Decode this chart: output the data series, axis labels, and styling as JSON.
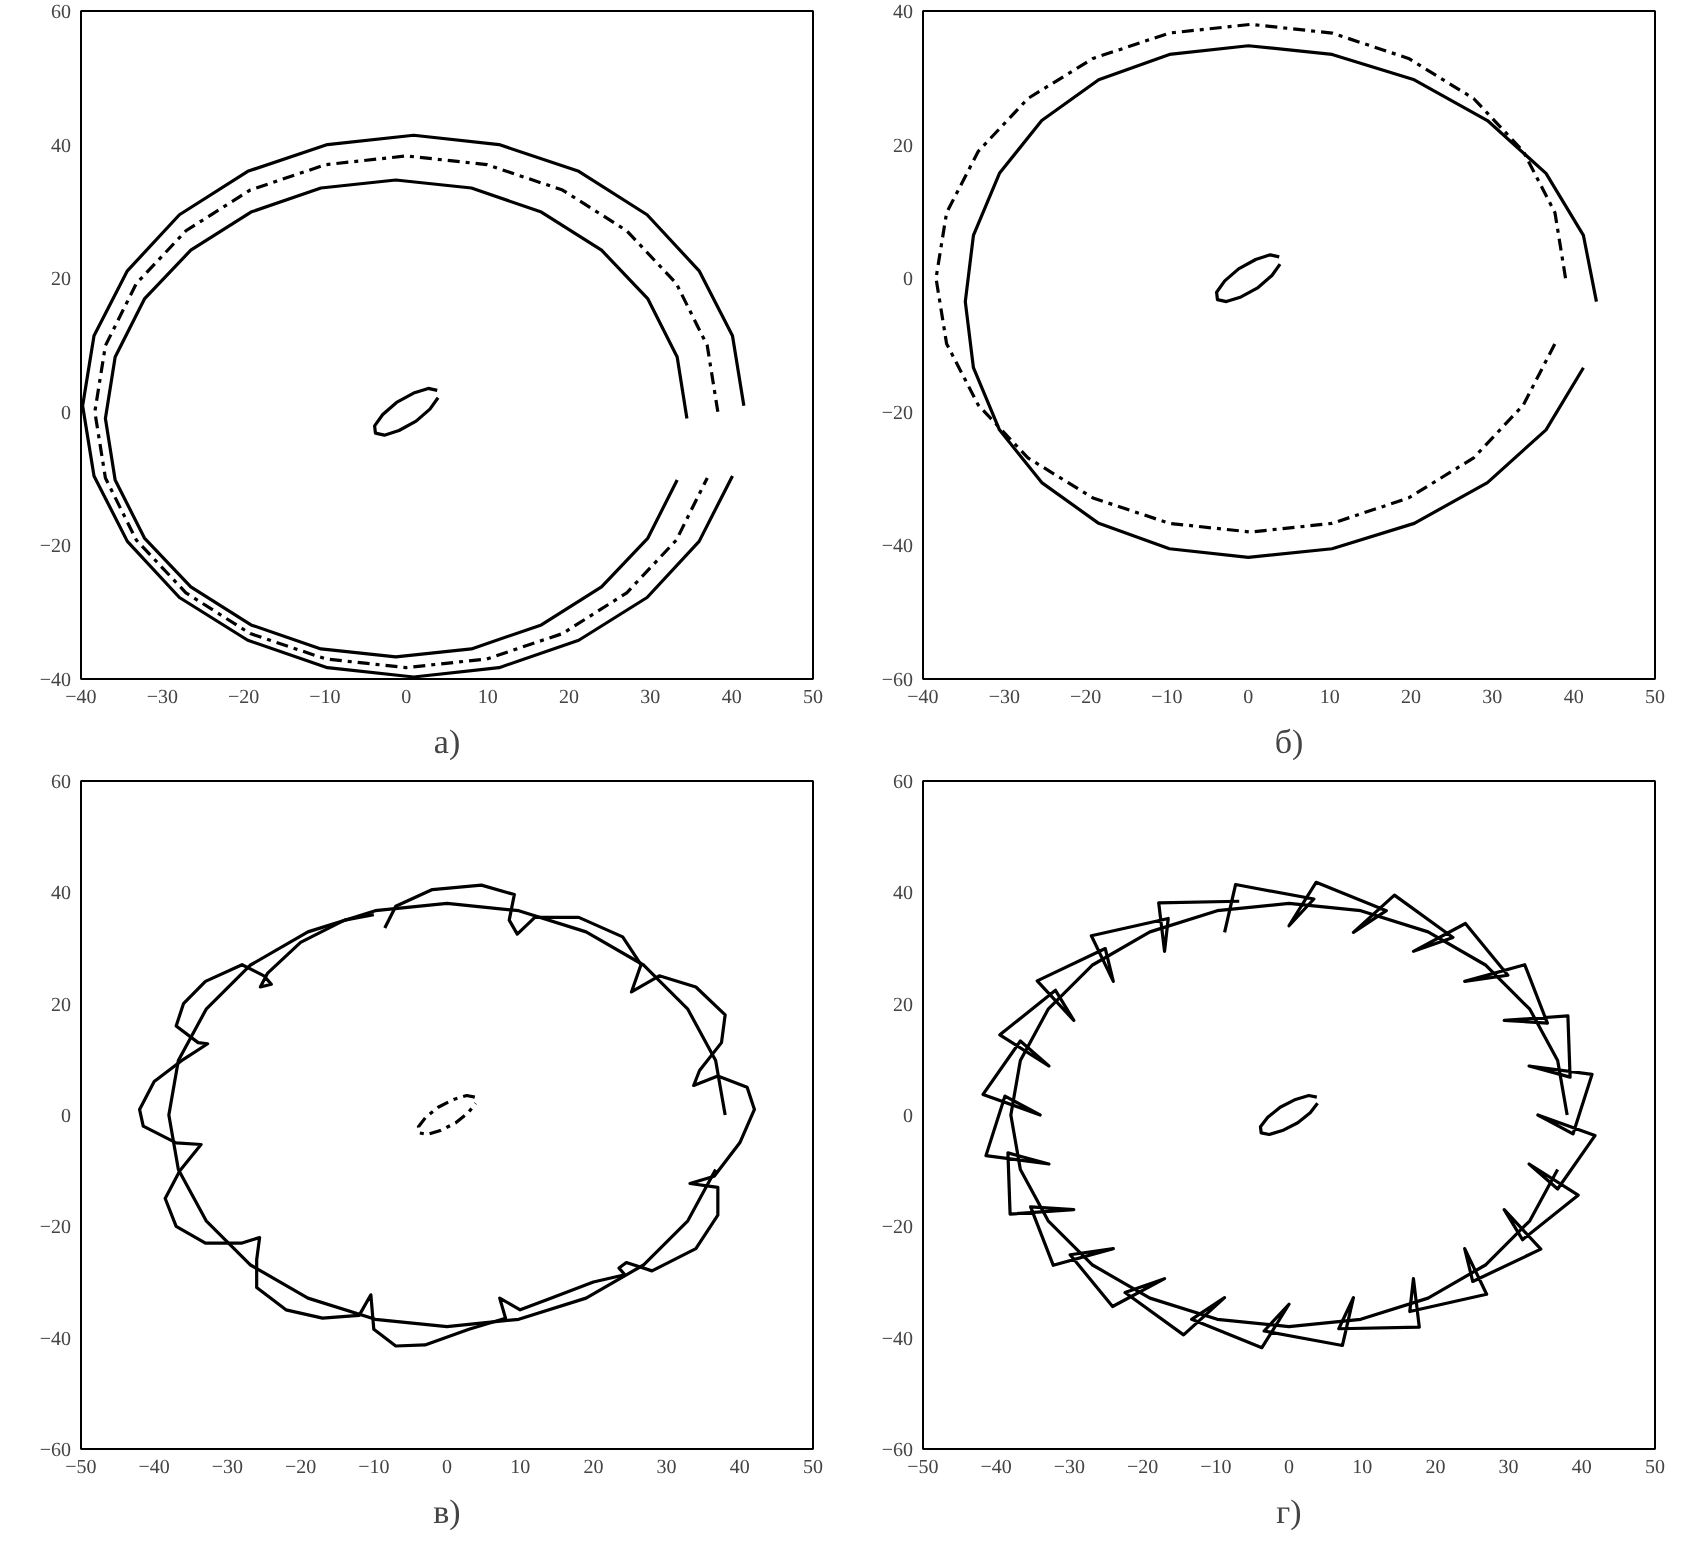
{
  "chart_data": [
    {
      "type": "line",
      "title": "а)",
      "xlim": [
        -40,
        50
      ],
      "ylim": [
        -40,
        60
      ],
      "xticks": [
        -40,
        -30,
        -20,
        -10,
        0,
        10,
        20,
        30,
        40,
        50
      ],
      "yticks": [
        -40,
        -20,
        0,
        20,
        40,
        60
      ],
      "series": [
        {
          "color": "#000000",
          "line_style": "solid",
          "x": [
            41.5,
            40.1,
            36.0,
            29.6,
            21.2,
            11.4,
            0.9,
            -9.7,
            -19.5,
            -27.9,
            -34.3,
            -38.4,
            -39.8,
            -38.4,
            -34.3,
            -27.9,
            -19.5,
            -9.7,
            0.9,
            11.4,
            21.2,
            29.6,
            36.0,
            40.1
          ],
          "values": [
            0.9,
            11.4,
            21.1,
            29.5,
            36.0,
            40.0,
            41.4,
            40.0,
            36.0,
            29.5,
            21.1,
            11.4,
            0.9,
            -9.6,
            -19.4,
            -27.8,
            -34.2,
            -38.3,
            -39.7,
            -38.3,
            -34.2,
            -27.8,
            -19.4,
            -9.6
          ]
        },
        {
          "color": "#000000",
          "line_style": "dashed",
          "x": [
            38.3,
            37.0,
            33.2,
            27.1,
            19.2,
            9.9,
            0,
            -9.9,
            -19.2,
            -27.1,
            -33.2,
            -37.0,
            -38.3,
            -37.0,
            -33.2,
            -27.1,
            -19.2,
            -9.9,
            0,
            9.9,
            19.2,
            27.1,
            33.2,
            37.0
          ],
          "values": [
            0,
            9.9,
            19.2,
            27.1,
            33.2,
            37.0,
            38.3,
            37.0,
            33.2,
            27.1,
            19.2,
            9.9,
            0,
            -9.9,
            -19.2,
            -27.1,
            -33.2,
            -37.0,
            -38.3,
            -37.0,
            -33.2,
            -27.1,
            -19.2,
            -9.9
          ]
        },
        {
          "color": "#000000",
          "line_style": "solid",
          "x": [
            34.5,
            33.3,
            29.7,
            24.0,
            16.6,
            8.0,
            -1.3,
            -10.5,
            -19.1,
            -26.5,
            -32.2,
            -35.8,
            -37.0,
            -35.8,
            -32.2,
            -26.5,
            -19.1,
            -10.5,
            -1.3,
            8.0,
            16.6,
            24.0,
            29.7,
            33.3
          ],
          "values": [
            -1.0,
            8.2,
            16.9,
            24.2,
            29.9,
            33.5,
            34.7,
            33.5,
            29.9,
            24.2,
            16.9,
            8.2,
            -1.0,
            -10.2,
            -18.9,
            -26.2,
            -31.9,
            -35.5,
            -36.7,
            -35.5,
            -31.9,
            -26.2,
            -18.9,
            -10.2
          ]
        },
        {
          "color": "#000000",
          "line_style": "solid",
          "x": [
            3.8,
            2.7,
            0.9,
            -1.2,
            -2.9,
            -3.9,
            -3.8,
            -2.7,
            -0.9,
            1.2,
            2.9,
            3.9
          ],
          "values": [
            3.2,
            3.5,
            2.8,
            1.4,
            -0.4,
            -2.1,
            -3.2,
            -3.5,
            -2.8,
            -1.4,
            0.4,
            2.1
          ]
        }
      ]
    },
    {
      "type": "line",
      "title": "б)",
      "xlim": [
        -40,
        50
      ],
      "ylim": [
        -60,
        40
      ],
      "xticks": [
        -40,
        -30,
        -20,
        -10,
        0,
        10,
        20,
        30,
        40,
        50
      ],
      "yticks": [
        -60,
        -40,
        -20,
        0,
        20,
        40
      ],
      "series": [
        {
          "color": "#000000",
          "line_style": "solid",
          "x": [
            42.8,
            41.2,
            36.6,
            29.4,
            20.4,
            10.3,
            0,
            -9.7,
            -18.4,
            -25.4,
            -30.6,
            -33.8,
            -34.8,
            -33.8,
            -30.6,
            -25.4,
            -18.4,
            -9.7,
            0,
            10.3,
            20.4,
            29.4,
            36.6,
            41.2
          ],
          "values": [
            -3.5,
            6.4,
            15.7,
            23.6,
            29.7,
            33.5,
            34.8,
            33.5,
            29.7,
            23.6,
            15.7,
            6.4,
            -3.5,
            -13.4,
            -22.7,
            -30.6,
            -36.7,
            -40.5,
            -41.8,
            -40.5,
            -36.7,
            -30.6,
            -22.7,
            -13.4
          ]
        },
        {
          "color": "#000000",
          "line_style": "dashed",
          "x": [
            39.0,
            37.7,
            33.8,
            27.7,
            19.7,
            10.3,
            0.3,
            -9.7,
            -19.1,
            -27.1,
            -33.2,
            -37.1,
            -38.4,
            -37.1,
            -33.2,
            -27.1,
            -19.1,
            -9.7,
            0.3,
            10.3,
            19.7,
            27.7,
            33.8,
            37.7
          ],
          "values": [
            0,
            9.8,
            19.0,
            26.9,
            32.9,
            36.7,
            38.0,
            36.7,
            32.9,
            26.9,
            19.0,
            9.8,
            0,
            -9.8,
            -19.0,
            -26.9,
            -32.9,
            -36.7,
            -38.0,
            -36.7,
            -32.9,
            -26.9,
            -19.0,
            -9.8
          ]
        },
        {
          "color": "#000000",
          "line_style": "solid",
          "x": [
            3.8,
            2.7,
            0.9,
            -1.2,
            -2.9,
            -3.9,
            -3.8,
            -2.7,
            -0.9,
            1.2,
            2.9,
            3.9
          ],
          "values": [
            3.2,
            3.5,
            2.8,
            1.4,
            -0.4,
            -2.1,
            -3.2,
            -3.5,
            -2.8,
            -1.4,
            0.4,
            2.1
          ]
        }
      ]
    },
    {
      "type": "line",
      "title": "в)",
      "xlim": [
        -50,
        50
      ],
      "ylim": [
        -60,
        60
      ],
      "xticks": [
        -50,
        -40,
        -30,
        -20,
        -10,
        0,
        10,
        20,
        30,
        40,
        50
      ],
      "yticks": [
        -60,
        -40,
        -20,
        0,
        20,
        40,
        60
      ],
      "series": [
        {
          "color": "#000000",
          "line_style": "solid",
          "x": [
            -8.5,
            -7,
            -2,
            4.7,
            9.2,
            8.5,
            9.6,
            12,
            18,
            24,
            26.5,
            25.2,
            29,
            34,
            38,
            37.5,
            34.5,
            33.7,
            37,
            41,
            42,
            40,
            36.5,
            33.2,
            37,
            37,
            34,
            28,
            24.5,
            23.5,
            24.3,
            20,
            14,
            10,
            7.2,
            8,
            3,
            -3,
            -7,
            -10,
            -10.4,
            -12,
            -17,
            -22,
            -26,
            -26,
            -25.6,
            -28,
            -33,
            -37,
            -38.5,
            -36.5,
            -33.6,
            -37,
            -41.5,
            -42,
            -40,
            -36,
            -32.7,
            -34,
            -37,
            -36,
            -33,
            -28,
            -25,
            -24,
            -25.5,
            -24.5,
            -20,
            -14,
            -10
          ],
          "values": [
            33.6,
            37.5,
            40.5,
            41.3,
            39.6,
            35,
            32.5,
            35.5,
            35.5,
            32,
            27,
            22.1,
            25,
            23,
            18,
            13,
            8,
            5.3,
            7,
            5,
            1,
            -5,
            -11,
            -12.3,
            -13,
            -18,
            -24,
            -28,
            -26.5,
            -27.5,
            -28.7,
            -30,
            -33,
            -35,
            -32.9,
            -36.5,
            -38.5,
            -41.3,
            -41.5,
            -38.5,
            -32.3,
            -36,
            -36.5,
            -35,
            -31,
            -26,
            -22,
            -23,
            -23,
            -20,
            -15,
            -10,
            -5.3,
            -5,
            -2,
            1,
            6,
            10,
            12.8,
            13,
            16,
            20,
            24,
            27,
            25,
            23.5,
            23,
            25.5,
            31,
            35,
            36
          ]
        },
        {
          "color": "#000000",
          "line_style": "solid",
          "x": [
            38.0,
            36.7,
            32.9,
            26.9,
            19.0,
            9.8,
            0,
            -9.8,
            -19.0,
            -26.9,
            -32.9,
            -36.7,
            -38.0,
            -36.7,
            -32.9,
            -26.9,
            -19.0,
            -9.8,
            0,
            9.8,
            19.0,
            26.9,
            32.9,
            36.7
          ],
          "values": [
            0,
            9.8,
            19.0,
            26.9,
            32.9,
            36.7,
            38.0,
            36.7,
            32.9,
            26.9,
            19.0,
            9.8,
            0,
            -9.8,
            -19.0,
            -26.9,
            -32.9,
            -36.7,
            -38.0,
            -36.7,
            -32.9,
            -26.9,
            -19.0,
            -9.8
          ]
        },
        {
          "color": "#000000",
          "line_style": "dashed",
          "x": [
            3.8,
            2.7,
            0.9,
            -1.2,
            -2.9,
            -3.9,
            -3.8,
            -2.7,
            -0.9,
            1.2,
            2.9,
            3.9
          ],
          "values": [
            3.2,
            3.5,
            2.8,
            1.4,
            -0.4,
            -2.1,
            -3.2,
            -3.5,
            -2.8,
            -1.4,
            0.4,
            2.1
          ]
        }
      ]
    },
    {
      "type": "line",
      "title": "г)",
      "xlim": [
        -50,
        50
      ],
      "ylim": [
        -60,
        60
      ],
      "xticks": [
        -50,
        -40,
        -30,
        -20,
        -10,
        0,
        10,
        20,
        30,
        40,
        50
      ],
      "yticks": [
        -60,
        -40,
        -20,
        0,
        20,
        40,
        60
      ],
      "series": [
        {
          "color": "#000000",
          "line_style": "solid",
          "x": [
            -8.8,
            -7.3,
            3.4,
            0,
            3.7,
            13.3,
            8.8,
            14.4,
            22.4,
            17,
            24.1,
            29.9,
            24,
            32.2,
            35.3,
            29.4,
            38.1,
            38.4,
            32.8,
            41.4,
            38.8,
            34,
            41.8,
            36.7,
            32.8,
            39.5,
            31.9,
            29.4,
            34.4,
            25.1,
            24,
            27,
            16.5,
            17,
            17.8,
            6.8,
            8.8,
            7.3,
            -3.4,
            0,
            -3.7,
            -13.3,
            -8.8,
            -14.4,
            -22.4,
            -17,
            -24.1,
            -29.9,
            -24,
            -32.2,
            -35.3,
            -29.4,
            -38.1,
            -38.4,
            -32.8,
            -41.4,
            -38.8,
            -34,
            -41.8,
            -36.7,
            -32.8,
            -39.5,
            -31.9,
            -29.4,
            -34.4,
            -25.1,
            -24,
            -27,
            -16.5,
            -17,
            -17.8,
            -6.8
          ],
          "values": [
            32.8,
            41.4,
            38.8,
            34,
            41.8,
            36.7,
            32.8,
            39.5,
            31.9,
            29.4,
            34.4,
            25.1,
            24,
            27,
            16.5,
            17,
            17.8,
            6.8,
            8.8,
            7.3,
            -3.4,
            0,
            -3.7,
            -13.3,
            -8.8,
            -14.4,
            -22.4,
            -17,
            -24.1,
            -29.9,
            -24,
            -32.2,
            -35.3,
            -29.4,
            -38.1,
            -38.4,
            -32.8,
            -41.4,
            -38.8,
            -34,
            -41.8,
            -36.7,
            -32.8,
            -39.5,
            -31.9,
            -29.4,
            -34.4,
            -25.1,
            -24,
            -27,
            -16.5,
            -17,
            -17.8,
            -6.8,
            -8.8,
            -7.3,
            3.4,
            0,
            3.7,
            13.3,
            8.8,
            14.4,
            22.4,
            17,
            24.1,
            29.9,
            24,
            32.2,
            35.3,
            29.4,
            38.1,
            38.4
          ]
        },
        {
          "color": "#000000",
          "line_style": "solid",
          "x": [
            38.0,
            36.7,
            32.9,
            26.9,
            19.0,
            9.8,
            0,
            -9.8,
            -19.0,
            -26.9,
            -32.9,
            -36.7,
            -38.0,
            -36.7,
            -32.9,
            -26.9,
            -19.0,
            -9.8,
            0,
            9.8,
            19.0,
            26.9,
            32.9,
            36.7
          ],
          "values": [
            0,
            9.8,
            19.0,
            26.9,
            32.9,
            36.7,
            38.0,
            36.7,
            32.9,
            26.9,
            19.0,
            9.8,
            0,
            -9.8,
            -19.0,
            -26.9,
            -32.9,
            -36.7,
            -38.0,
            -36.7,
            -32.9,
            -26.9,
            -19.0,
            -9.8
          ]
        },
        {
          "color": "#000000",
          "line_style": "solid",
          "x": [
            3.8,
            2.7,
            0.9,
            -1.2,
            -2.9,
            -3.9,
            -3.8,
            -2.7,
            -0.9,
            1.2,
            2.9,
            3.9
          ],
          "values": [
            3.2,
            3.5,
            2.8,
            1.4,
            -0.4,
            -2.1,
            -3.2,
            -3.5,
            -2.8,
            -1.4,
            0.4,
            2.1
          ]
        }
      ]
    }
  ]
}
